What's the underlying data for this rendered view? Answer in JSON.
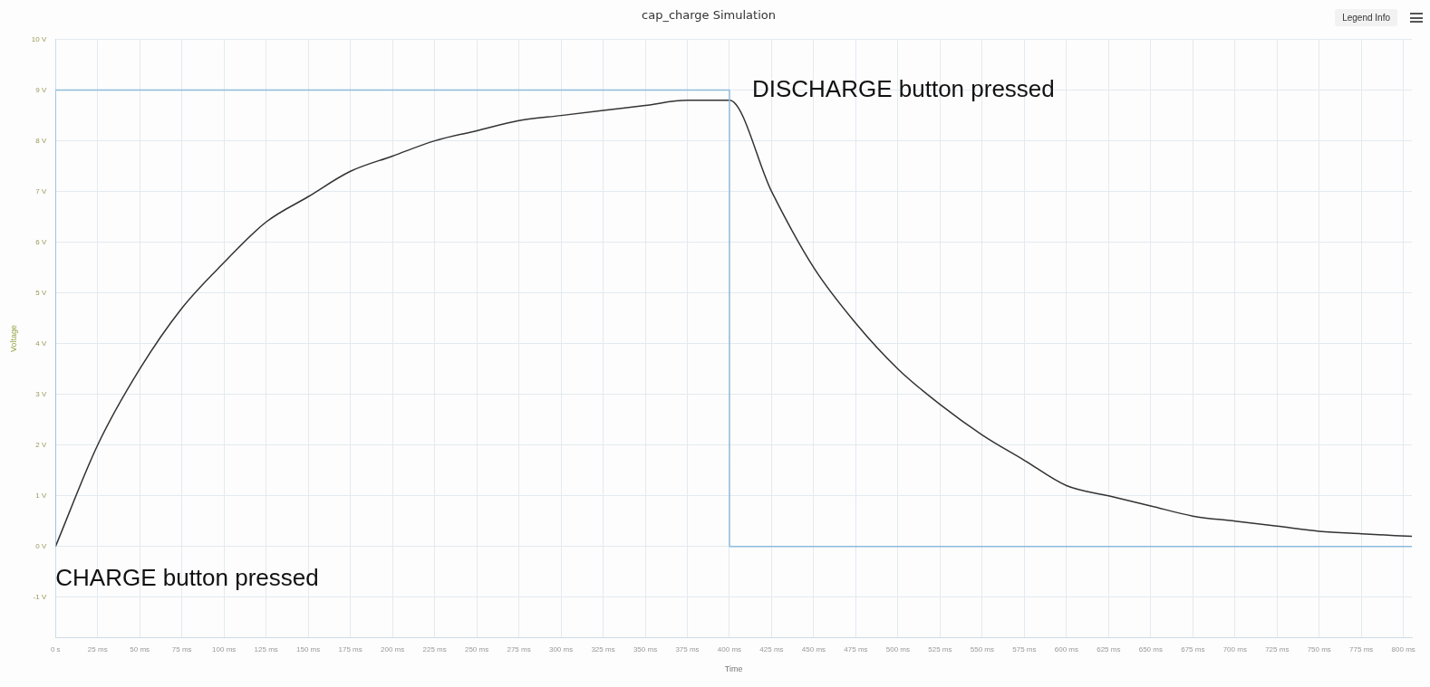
{
  "chart_data": {
    "type": "line",
    "title": "cap_charge Simulation",
    "xlabel": "Time",
    "ylabel": "Voltage",
    "series": [
      {
        "color": "#8fbcdb",
        "x": [
          0,
          0,
          400,
          400,
          805
        ],
        "values": [
          0,
          9,
          9,
          0,
          0
        ]
      },
      {
        "color": "#333333",
        "x": [
          0,
          25,
          50,
          75,
          100,
          125,
          150,
          175,
          200,
          225,
          250,
          275,
          300,
          325,
          350,
          375,
          400,
          425,
          450,
          475,
          500,
          525,
          550,
          575,
          600,
          625,
          650,
          675,
          700,
          725,
          750,
          775,
          805
        ],
        "values": [
          0,
          2.0,
          3.5,
          4.7,
          5.6,
          6.4,
          6.9,
          7.4,
          7.7,
          8.0,
          8.2,
          8.4,
          8.5,
          8.6,
          8.7,
          8.8,
          8.8,
          7.0,
          5.5,
          4.4,
          3.5,
          2.8,
          2.2,
          1.7,
          1.2,
          1.0,
          0.8,
          0.6,
          0.5,
          0.4,
          0.3,
          0.25,
          0.2
        ]
      }
    ],
    "xlim": [
      0,
      805
    ],
    "ylim": [
      -1.8,
      10
    ],
    "xticks": [
      {
        "value": 0,
        "label": "0 s"
      },
      {
        "value": 25,
        "label": "25 ms"
      },
      {
        "value": 50,
        "label": "50 ms"
      },
      {
        "value": 75,
        "label": "75 ms"
      },
      {
        "value": 100,
        "label": "100 ms"
      },
      {
        "value": 125,
        "label": "125 ms"
      },
      {
        "value": 150,
        "label": "150 ms"
      },
      {
        "value": 175,
        "label": "175 ms"
      },
      {
        "value": 200,
        "label": "200 ms"
      },
      {
        "value": 225,
        "label": "225 ms"
      },
      {
        "value": 250,
        "label": "250 ms"
      },
      {
        "value": 275,
        "label": "275 ms"
      },
      {
        "value": 300,
        "label": "300 ms"
      },
      {
        "value": 325,
        "label": "325 ms"
      },
      {
        "value": 350,
        "label": "350 ms"
      },
      {
        "value": 375,
        "label": "375 ms"
      },
      {
        "value": 400,
        "label": "400 ms"
      },
      {
        "value": 425,
        "label": "425 ms"
      },
      {
        "value": 450,
        "label": "450 ms"
      },
      {
        "value": 475,
        "label": "475 ms"
      },
      {
        "value": 500,
        "label": "500 ms"
      },
      {
        "value": 525,
        "label": "525 ms"
      },
      {
        "value": 550,
        "label": "550 ms"
      },
      {
        "value": 575,
        "label": "575 ms"
      },
      {
        "value": 600,
        "label": "600 ms"
      },
      {
        "value": 625,
        "label": "625 ms"
      },
      {
        "value": 650,
        "label": "650 ms"
      },
      {
        "value": 675,
        "label": "675 ms"
      },
      {
        "value": 700,
        "label": "700 ms"
      },
      {
        "value": 725,
        "label": "725 ms"
      },
      {
        "value": 750,
        "label": "750 ms"
      },
      {
        "value": 775,
        "label": "775 ms"
      },
      {
        "value": 800,
        "label": "800 ms"
      }
    ],
    "yticks": [
      {
        "value": -1,
        "label": "-1 V"
      },
      {
        "value": 0,
        "label": "0 V"
      },
      {
        "value": 1,
        "label": "1 V"
      },
      {
        "value": 2,
        "label": "2 V"
      },
      {
        "value": 3,
        "label": "3 V"
      },
      {
        "value": 4,
        "label": "4 V"
      },
      {
        "value": 5,
        "label": "5 V"
      },
      {
        "value": 6,
        "label": "6 V"
      },
      {
        "value": 7,
        "label": "7 V"
      },
      {
        "value": 8,
        "label": "8 V"
      },
      {
        "value": 9,
        "label": "9 V"
      },
      {
        "value": 10,
        "label": "10 V"
      }
    ],
    "annotations": [
      {
        "text": "DISCHARGE button pressed",
        "x": 400,
        "y": 9
      },
      {
        "text": "CHARGE button pressed",
        "x": 0,
        "y": 0
      },
      "Legend Info"
    ],
    "grid": true,
    "marker": "none",
    "line_style": "solid"
  }
}
